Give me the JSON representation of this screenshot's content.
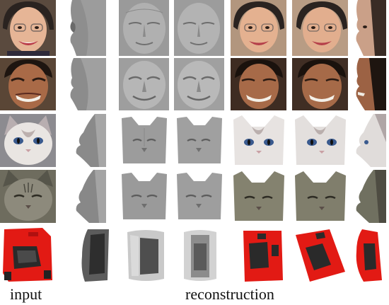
{
  "captions": {
    "input": "input",
    "reconstruction": "reconstruction"
  },
  "rows": [
    {
      "subject": "woman-face"
    },
    {
      "subject": "man-face"
    },
    {
      "subject": "white-cat"
    },
    {
      "subject": "gray-cat"
    },
    {
      "subject": "red-car"
    }
  ],
  "columns": [
    "input-photo",
    "side-shape",
    "front-shape-left",
    "front-shape-right",
    "textured-front-left",
    "textured-front-right",
    "textured-side"
  ],
  "colors": {
    "car_red": "#e21a14",
    "shape_gray": "#8a8a8a",
    "background": "#ffffff"
  }
}
